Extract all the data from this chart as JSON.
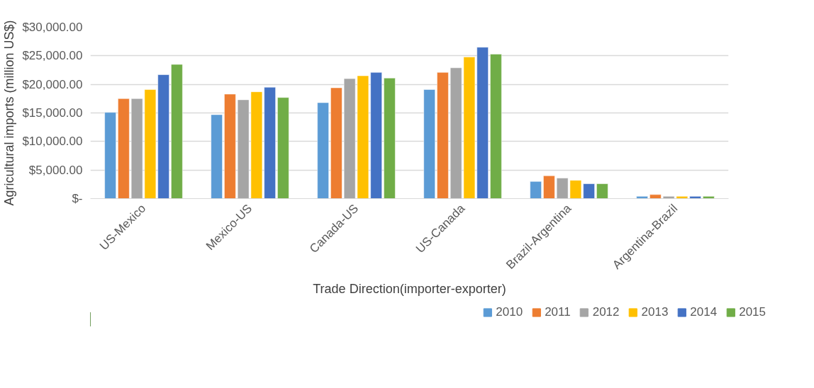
{
  "chart_data": {
    "type": "bar",
    "xlabel": "Trade Direction(importer-exporter)",
    "ylabel": "Agricultural imports (million US$)",
    "categories": [
      "US-Mexico",
      "Mexico-US",
      "Canada-US",
      "US-Canada",
      "Brazil-Argentina",
      "Argentina-Brazil"
    ],
    "series": [
      {
        "name": "2010",
        "color": "#5b9bd5",
        "values": [
          15100,
          14700,
          16800,
          19100,
          3000,
          400
        ]
      },
      {
        "name": "2011",
        "color": "#ed7d31",
        "values": [
          17500,
          18300,
          19400,
          22100,
          4000,
          700
        ]
      },
      {
        "name": "2012",
        "color": "#a5a5a5",
        "values": [
          17500,
          17300,
          21000,
          22900,
          3600,
          400
        ]
      },
      {
        "name": "2013",
        "color": "#ffc000",
        "values": [
          19100,
          18700,
          21500,
          24800,
          3200,
          400
        ]
      },
      {
        "name": "2014",
        "color": "#4472c4",
        "values": [
          21700,
          19500,
          22100,
          26500,
          2600,
          400
        ]
      },
      {
        "name": "2015",
        "color": "#70ad47",
        "values": [
          23500,
          17700,
          21100,
          25300,
          2600,
          400
        ]
      }
    ],
    "ylim": [
      0,
      30000
    ],
    "yticks": [
      {
        "value": 0,
        "label": "$-"
      },
      {
        "value": 5000,
        "label": "$5,000.00"
      },
      {
        "value": 10000,
        "label": "$10,000.00"
      },
      {
        "value": 15000,
        "label": "$15,000.00"
      },
      {
        "value": 20000,
        "label": "$20,000.00"
      },
      {
        "value": 25000,
        "label": "$25,000.00"
      },
      {
        "value": 30000,
        "label": "$30,000.00"
      }
    ],
    "grid": "y",
    "legend": "bottom"
  }
}
